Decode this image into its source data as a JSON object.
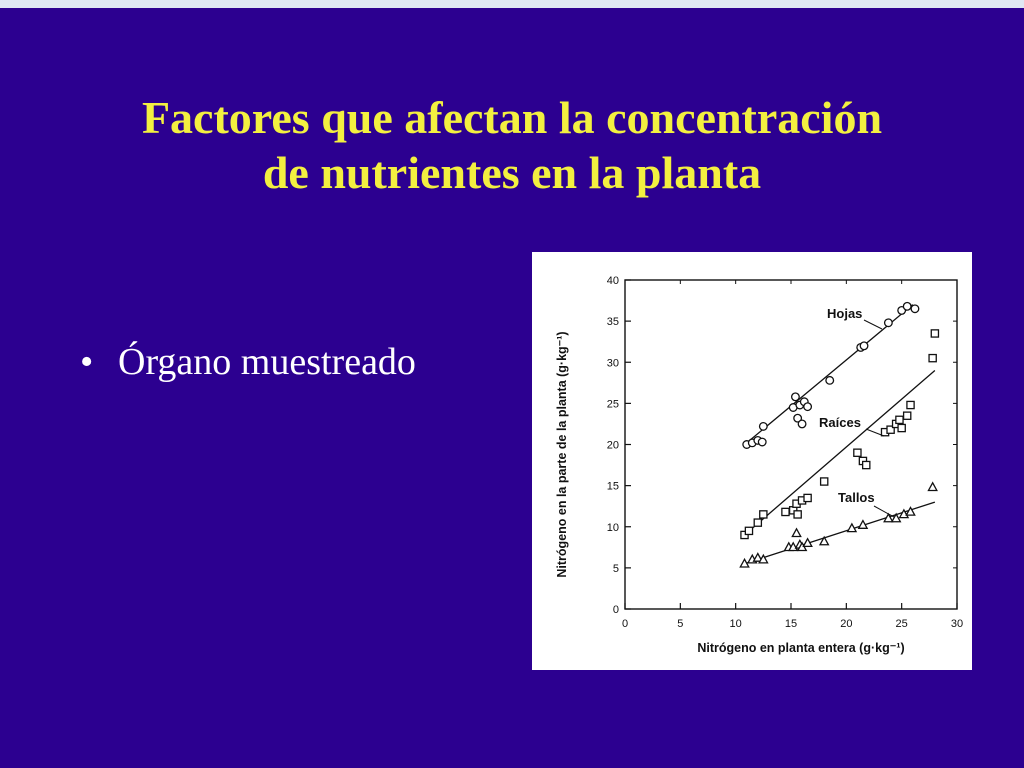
{
  "slide": {
    "title_line1": "Factores que afectan la concentración",
    "title_line2": "de nutrientes en la planta",
    "bullet": "Órgano muestreado",
    "colors": {
      "background": "#2c0090",
      "title": "#f3f040",
      "text": "#ffffff"
    }
  },
  "chart_data": {
    "type": "scatter",
    "xlabel": "Nitrógeno en planta entera (g·kg⁻¹)",
    "ylabel": "Nitrógeno en la parte de la planta (g·kg⁻¹)",
    "xlim": [
      0,
      30
    ],
    "ylim": [
      0,
      40
    ],
    "xticks": [
      0,
      5,
      10,
      15,
      20,
      25,
      30
    ],
    "yticks": [
      0,
      5,
      10,
      15,
      20,
      25,
      30,
      35,
      40
    ],
    "series": [
      {
        "name": "Hojas",
        "marker": "circle",
        "points": [
          [
            11.0,
            20.0
          ],
          [
            11.5,
            20.2
          ],
          [
            12.0,
            20.5
          ],
          [
            12.4,
            20.3
          ],
          [
            12.5,
            22.2
          ],
          [
            15.2,
            24.5
          ],
          [
            15.4,
            25.8
          ],
          [
            15.6,
            23.2
          ],
          [
            15.8,
            24.8
          ],
          [
            16.0,
            22.5
          ],
          [
            16.2,
            25.2
          ],
          [
            16.5,
            24.6
          ],
          [
            18.5,
            27.8
          ],
          [
            21.3,
            31.8
          ],
          [
            21.6,
            32.0
          ],
          [
            23.8,
            34.8
          ],
          [
            25.0,
            36.3
          ],
          [
            25.5,
            36.8
          ],
          [
            26.2,
            36.5
          ]
        ],
        "fit": [
          [
            11.0,
            20.2
          ],
          [
            26.0,
            37.0
          ]
        ]
      },
      {
        "name": "Raíces",
        "marker": "square",
        "points": [
          [
            10.8,
            9.0
          ],
          [
            11.2,
            9.5
          ],
          [
            12.0,
            10.5
          ],
          [
            12.5,
            11.5
          ],
          [
            14.5,
            11.8
          ],
          [
            15.2,
            12.0
          ],
          [
            15.5,
            12.8
          ],
          [
            15.6,
            11.5
          ],
          [
            16.0,
            13.2
          ],
          [
            16.5,
            13.5
          ],
          [
            18.0,
            15.5
          ],
          [
            21.0,
            19.0
          ],
          [
            21.5,
            18.0
          ],
          [
            21.8,
            17.5
          ],
          [
            23.5,
            21.5
          ],
          [
            24.0,
            21.8
          ],
          [
            24.5,
            22.5
          ],
          [
            24.8,
            23.0
          ],
          [
            25.0,
            22.0
          ],
          [
            25.5,
            23.5
          ],
          [
            25.8,
            24.8
          ],
          [
            27.8,
            30.5
          ],
          [
            28.0,
            33.5
          ]
        ],
        "fit": [
          [
            10.8,
            9.0
          ],
          [
            28.0,
            29.0
          ]
        ]
      },
      {
        "name": "Tallos",
        "marker": "triangle",
        "points": [
          [
            10.8,
            5.5
          ],
          [
            11.5,
            6.0
          ],
          [
            12.0,
            6.2
          ],
          [
            12.5,
            6.0
          ],
          [
            14.8,
            7.5
          ],
          [
            15.2,
            7.5
          ],
          [
            15.5,
            9.2
          ],
          [
            15.8,
            7.8
          ],
          [
            16.0,
            7.5
          ],
          [
            16.5,
            8.0
          ],
          [
            18.0,
            8.2
          ],
          [
            20.5,
            9.8
          ],
          [
            21.5,
            10.2
          ],
          [
            23.8,
            11.0
          ],
          [
            24.5,
            11.0
          ],
          [
            25.2,
            11.5
          ],
          [
            25.8,
            11.8
          ],
          [
            27.8,
            14.8
          ]
        ],
        "fit": [
          [
            10.8,
            5.5
          ],
          [
            28.0,
            13.0
          ]
        ]
      }
    ]
  }
}
